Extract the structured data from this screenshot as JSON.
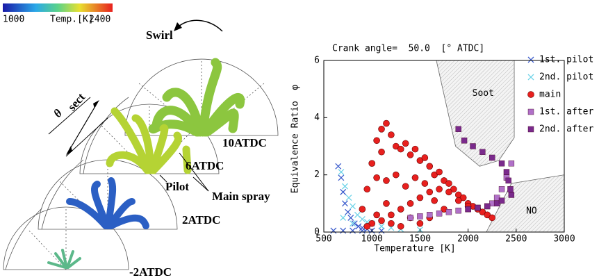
{
  "chart_data": {
    "type": "scatter",
    "title": "Crank angle=  50.0  [° ATDC]",
    "x_label": "Temperature [K]",
    "y_label": "Equivalence Ratio  φ",
    "xlim": [
      500,
      3000
    ],
    "xticks": [
      500,
      1000,
      1500,
      2000,
      2500,
      3000
    ],
    "ylim": [
      0,
      6
    ],
    "yticks": [
      0,
      2,
      4,
      6
    ],
    "regions": [
      {
        "label": "Soot",
        "x": [
          1670,
          2480,
          2480,
          2320,
          2120,
          1870
        ],
        "y": [
          6,
          6,
          3.3,
          2.5,
          2.3,
          3.0
        ]
      },
      {
        "label": "NO",
        "x": [
          2190,
          2450,
          3000,
          3000
        ],
        "y": [
          0,
          1.7,
          2.0,
          0
        ]
      }
    ],
    "series": [
      {
        "name": "1st. pilot",
        "color": "#3b5ccc",
        "marker": "x",
        "x": [
          650,
          680,
          700,
          720,
          750,
          780,
          820,
          860,
          900,
          950,
          600,
          700,
          800,
          900,
          1000,
          1100
        ],
        "values": [
          2.3,
          1.9,
          1.4,
          1.0,
          0.7,
          0.5,
          0.3,
          0.2,
          0.15,
          0.1,
          0.05,
          0.05,
          0.05,
          0.05,
          0.05,
          0.05
        ]
      },
      {
        "name": "2nd. pilot",
        "color": "#6fd3e8",
        "marker": "x",
        "x": [
          680,
          720,
          760,
          800,
          850,
          900,
          950,
          1000,
          1100,
          1200,
          1300,
          1500,
          700,
          800
        ],
        "values": [
          2.1,
          1.6,
          1.2,
          0.9,
          0.6,
          0.45,
          0.35,
          0.3,
          0.2,
          0.15,
          0.1,
          0.08,
          0.5,
          0.3
        ]
      },
      {
        "name": "main",
        "color": "#e8201e",
        "marker": "circle",
        "x": [
          900,
          950,
          1000,
          1050,
          1100,
          1150,
          1100,
          1050,
          1200,
          1250,
          1300,
          1350,
          1400,
          1450,
          1500,
          1550,
          1600,
          1650,
          1700,
          1750,
          1800,
          1850,
          1900,
          1950,
          2000,
          2050,
          2100,
          2150,
          2200,
          2250,
          1000,
          1100,
          1200,
          1300,
          1400,
          1500,
          1600,
          1700,
          1800,
          1900,
          2000,
          1150,
          1250,
          1350,
          1450,
          1550,
          1650,
          1750,
          1300,
          1400,
          1200,
          950,
          1050,
          1150,
          1600,
          1500
        ],
        "values": [
          0.8,
          1.5,
          2.4,
          3.2,
          3.6,
          3.8,
          2.8,
          1.9,
          3.4,
          3.0,
          2.9,
          3.1,
          2.7,
          2.9,
          2.5,
          2.6,
          2.3,
          2.0,
          2.1,
          1.8,
          1.7,
          1.5,
          1.3,
          1.2,
          1.0,
          0.9,
          0.8,
          0.7,
          0.6,
          0.5,
          0.3,
          0.4,
          0.6,
          0.8,
          1.0,
          1.2,
          1.4,
          1.5,
          1.4,
          1.1,
          0.9,
          1.8,
          2.0,
          1.6,
          1.9,
          1.7,
          1.1,
          0.8,
          0.2,
          0.5,
          0.3,
          0.2,
          0.6,
          1.0,
          0.5,
          0.3
        ]
      },
      {
        "name": "1st. after",
        "color": "#b070c8",
        "marker": "square",
        "x": [
          1400,
          1500,
          1600,
          1700,
          1800,
          1900,
          2000,
          2100,
          2200,
          2250,
          2300,
          2350,
          2400,
          2450
        ],
        "values": [
          0.5,
          0.55,
          0.6,
          0.65,
          0.7,
          0.75,
          0.8,
          0.85,
          0.9,
          1.0,
          1.2,
          1.5,
          1.9,
          2.4
        ]
      },
      {
        "name": "2nd. after",
        "color": "#7a2a8c",
        "marker": "square",
        "x": [
          1900,
          1960,
          2050,
          2150,
          2250,
          2350,
          2400,
          2420,
          2440,
          2300,
          2200,
          2100,
          2000,
          2350,
          2450
        ],
        "values": [
          3.6,
          3.2,
          3.0,
          2.8,
          2.6,
          2.4,
          2.1,
          1.8,
          1.5,
          1.0,
          0.9,
          0.85,
          0.8,
          1.1,
          1.3
        ]
      }
    ]
  },
  "diagram": {
    "colorbar": {
      "min": "1000",
      "label": "Temp.[K]",
      "max": "2400"
    },
    "swirl": "Swirl",
    "theta": "θ",
    "theta_sub": "sect",
    "pilot": "Pilot",
    "main_spray": "Main spray",
    "stages": [
      "10ATDC",
      "6ATDC",
      "2ATDC",
      "-2ATDC"
    ]
  }
}
